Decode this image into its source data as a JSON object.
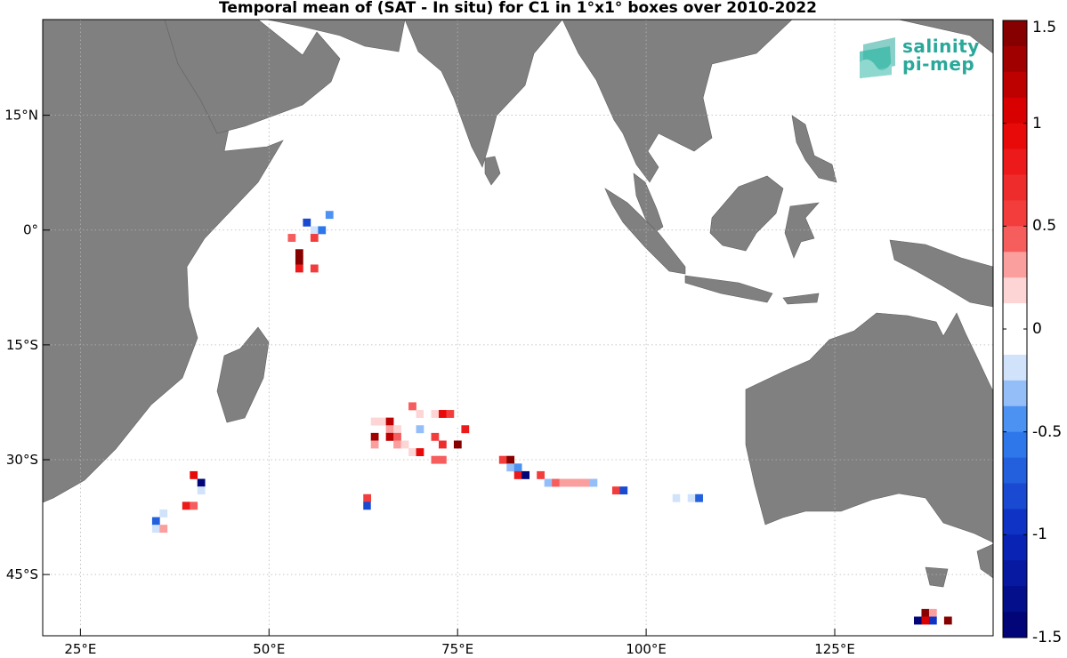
{
  "title": "Temporal mean of (SAT - In situ) for C1 in 1°x1° boxes over 2010-2022",
  "lon_labels": [
    {
      "deg": 25,
      "text": "25°E"
    },
    {
      "deg": 50,
      "text": "50°E"
    },
    {
      "deg": 75,
      "text": "75°E"
    },
    {
      "deg": 100,
      "text": "100°E"
    },
    {
      "deg": 125,
      "text": "125°E"
    }
  ],
  "lat_labels": [
    {
      "deg": 15,
      "text": "15°N"
    },
    {
      "deg": 0,
      "text": "0°"
    },
    {
      "deg": -15,
      "text": "15°S"
    },
    {
      "deg": -30,
      "text": "30°S"
    },
    {
      "deg": -45,
      "text": "45°S"
    }
  ],
  "extent": {
    "lon_min": 20,
    "lon_max": 146,
    "lat_min": -53,
    "lat_max": 27.5
  },
  "colorbar": {
    "min": -1.5,
    "max": 1.5,
    "labels": [
      "1.5",
      "1",
      "0.5",
      "0",
      "-0.5",
      "-1",
      "-1.5"
    ],
    "label_values": [
      1.5,
      1,
      0.5,
      0,
      -0.5,
      -1,
      -1.5
    ]
  },
  "logo": {
    "line1": "salinity",
    "line2": "pi-mep"
  },
  "colors": {
    "land": "#808080",
    "grid": "#b0b0b0",
    "logo": "#2aa89a"
  },
  "cells": [
    [
      58,
      2,
      -0.4
    ],
    [
      55,
      1,
      -0.8
    ],
    [
      56,
      0,
      -0.2
    ],
    [
      57,
      0,
      -0.6
    ],
    [
      53,
      -1,
      0.4
    ],
    [
      56,
      -1,
      0.6
    ],
    [
      55,
      -2,
      -0.1
    ],
    [
      54,
      -3,
      1.5
    ],
    [
      54,
      -4,
      1.5
    ],
    [
      54,
      -5,
      0.8
    ],
    [
      56,
      -5,
      0.5
    ],
    [
      69,
      -23,
      0.4
    ],
    [
      70,
      -24,
      0.2
    ],
    [
      71,
      -24,
      -0.1
    ],
    [
      72,
      -24,
      0.2
    ],
    [
      73,
      -24,
      0.9
    ],
    [
      74,
      -24,
      0.6
    ],
    [
      64,
      -25,
      0.2
    ],
    [
      65,
      -25,
      0.2
    ],
    [
      66,
      -25,
      1.2
    ],
    [
      75,
      -25,
      -0.1
    ],
    [
      66,
      -26,
      0.3
    ],
    [
      67,
      -26,
      0.2
    ],
    [
      70,
      -26,
      -0.3
    ],
    [
      76,
      -26,
      0.8
    ],
    [
      64,
      -27,
      1.3
    ],
    [
      66,
      -27,
      1.2
    ],
    [
      67,
      -27,
      0.4
    ],
    [
      72,
      -27,
      0.5
    ],
    [
      64,
      -28,
      0.3
    ],
    [
      67,
      -28,
      0.3
    ],
    [
      68,
      -28,
      0.2
    ],
    [
      73,
      -28,
      0.7
    ],
    [
      75,
      -28,
      1.4
    ],
    [
      69,
      -29,
      0.2
    ],
    [
      70,
      -29,
      0.9
    ],
    [
      72,
      -30,
      0.4
    ],
    [
      73,
      -30,
      0.4
    ],
    [
      81,
      -30,
      0.5
    ],
    [
      82,
      -30,
      1.5
    ],
    [
      82,
      -31,
      -0.3
    ],
    [
      83,
      -31,
      -0.5
    ],
    [
      83,
      -32,
      0.8
    ],
    [
      84,
      -32,
      -1.5
    ],
    [
      86,
      -32,
      0.6
    ],
    [
      87,
      -33,
      -0.3
    ],
    [
      88,
      -33,
      0.4
    ],
    [
      89,
      -33,
      0.3
    ],
    [
      90,
      -33,
      0.3
    ],
    [
      91,
      -33,
      0.3
    ],
    [
      92,
      -33,
      0.3
    ],
    [
      93,
      -33,
      -0.3
    ],
    [
      96,
      -34,
      0.5
    ],
    [
      97,
      -34,
      -0.8
    ],
    [
      104,
      -35,
      -0.2
    ],
    [
      105,
      -35,
      -0.1
    ],
    [
      106,
      -35,
      -0.2
    ],
    [
      107,
      -35,
      -0.7
    ],
    [
      40,
      -32,
      0.9
    ],
    [
      41,
      -33,
      -1.5
    ],
    [
      39,
      -33,
      -0.1
    ],
    [
      39,
      -34,
      -0.1
    ],
    [
      41,
      -34,
      -0.2
    ],
    [
      39,
      -36,
      0.8
    ],
    [
      40,
      -36,
      0.4
    ],
    [
      63,
      -35,
      0.5
    ],
    [
      63,
      -36,
      -0.8
    ],
    [
      64,
      -36,
      -0.1
    ],
    [
      64,
      -37,
      -0.1
    ],
    [
      36,
      -37,
      -0.2
    ],
    [
      35,
      -38,
      -0.7
    ],
    [
      35,
      -39,
      -0.2
    ],
    [
      36,
      -39,
      0.3
    ],
    [
      137,
      -50,
      1.4
    ],
    [
      138,
      -50,
      0.3
    ],
    [
      136,
      -51,
      -1.5
    ],
    [
      137,
      -51,
      1.0
    ],
    [
      138,
      -51,
      -1.0
    ],
    [
      140,
      -51,
      1.5
    ]
  ]
}
